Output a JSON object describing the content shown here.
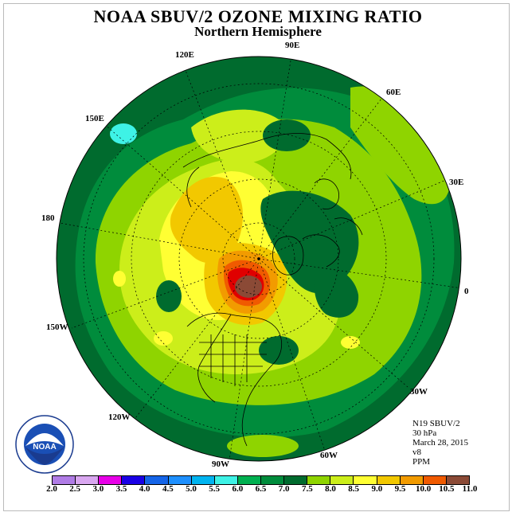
{
  "title": "NOAA SBUV/2 OZONE MIXING RATIO",
  "subtitle": "Northern Hemisphere",
  "longitude_labels": {
    "lon_120E": "120E",
    "lon_90E": "90E",
    "lon_60E": "60E",
    "lon_30E": "30E",
    "lon_0": "0",
    "lon_30W": "30W",
    "lon_60W": "60W",
    "lon_90W": "90W",
    "lon_120W": "120W",
    "lon_150W": "150W",
    "lon_180": "180",
    "lon_150E": "150E"
  },
  "info": {
    "satellite": "N19 SBUV/2",
    "level": "30 hPa",
    "date": "March 28, 2015",
    "version": "v8",
    "units": "PPM"
  },
  "logo": {
    "text": "NOAA",
    "ring_text": "NATIONAL OCEANIC AND ATMOSPHERIC ADMINISTRATION · U.S. DEPARTMENT OF COMMERCE"
  },
  "colorbar": {
    "ticks": [
      "2.0",
      "2.5",
      "3.0",
      "3.5",
      "4.0",
      "4.5",
      "5.0",
      "5.5",
      "6.0",
      "6.5",
      "7.0",
      "7.5",
      "8.0",
      "8.5",
      "9.0",
      "9.5",
      "10.0",
      "10.5",
      "11.0"
    ],
    "colors": [
      "#b07ce6",
      "#d9a7f0",
      "#e800e8",
      "#1a00e6",
      "#1565e8",
      "#1e90ff",
      "#00b4f0",
      "#3ef2e6",
      "#00b050",
      "#008c3c",
      "#006b2e",
      "#8fd400",
      "#ccee1a",
      "#ffff33",
      "#f2c800",
      "#f29b00",
      "#f05a00",
      "#e00000",
      "#8b4a36"
    ]
  }
}
